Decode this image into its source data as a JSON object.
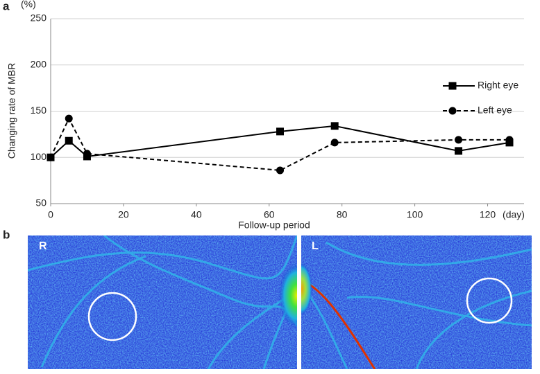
{
  "panel_labels": [
    "a",
    "b"
  ],
  "chart_data": {
    "type": "line",
    "y_label": "Changing rate of MBR",
    "y_unit": "(%)",
    "x_label": "Follow-up period",
    "x_unit": "(day)",
    "x": [
      0,
      5,
      10,
      63,
      78,
      112,
      126
    ],
    "series": [
      {
        "name": "Right eye",
        "color": "#000000",
        "line_style": "solid",
        "marker": "square",
        "values": [
          100,
          118,
          101,
          128,
          134,
          107,
          116
        ]
      },
      {
        "name": "Left eye",
        "color": "#000000",
        "line_style": "dashed",
        "marker": "circle",
        "values": [
          100,
          142,
          104,
          86,
          116,
          119,
          119
        ]
      }
    ],
    "xlim": [
      0,
      130
    ],
    "xticks": [
      0,
      20,
      40,
      60,
      80,
      100,
      120
    ],
    "ylim": [
      50,
      250
    ],
    "yticks": [
      50,
      100,
      150,
      200,
      250
    ],
    "grid": true,
    "legend": "right"
  },
  "images": [
    {
      "label": "R"
    },
    {
      "label": "L"
    }
  ]
}
